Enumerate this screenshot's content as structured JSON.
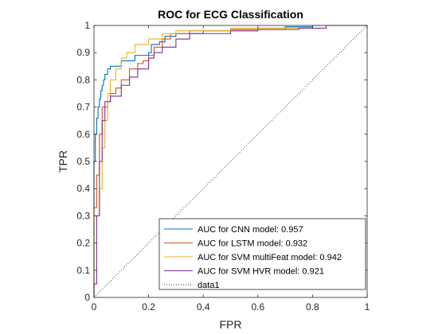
{
  "chart_data": {
    "type": "line",
    "title": "ROC for ECG Classification",
    "xlabel": "FPR",
    "ylabel": "TPR",
    "xlim": [
      0,
      1
    ],
    "ylim": [
      0,
      1
    ],
    "xticks": [
      "0",
      "0.2",
      "0.4",
      "0.6",
      "0.8",
      "1"
    ],
    "yticks": [
      "0",
      "0.1",
      "0.2",
      "0.3",
      "0.4",
      "0.5",
      "0.6",
      "0.7",
      "0.8",
      "0.9",
      "1"
    ],
    "grid": false,
    "legend_position": "bottom-right",
    "series": [
      {
        "name": "AUC for CNN model: 0.957",
        "color": "#0072bd",
        "style": "solid",
        "points": [
          [
            0,
            0
          ],
          [
            0,
            0.5
          ],
          [
            0.005,
            0.6
          ],
          [
            0.01,
            0.66
          ],
          [
            0.015,
            0.7
          ],
          [
            0.02,
            0.73
          ],
          [
            0.025,
            0.76
          ],
          [
            0.03,
            0.78
          ],
          [
            0.035,
            0.8
          ],
          [
            0.04,
            0.82
          ],
          [
            0.05,
            0.84
          ],
          [
            0.06,
            0.85
          ],
          [
            0.08,
            0.85
          ],
          [
            0.1,
            0.87
          ],
          [
            0.15,
            0.89
          ],
          [
            0.2,
            0.9
          ],
          [
            0.21,
            0.93
          ],
          [
            0.24,
            0.94
          ],
          [
            0.26,
            0.96
          ],
          [
            0.3,
            0.97
          ],
          [
            0.4,
            0.98
          ],
          [
            0.5,
            0.985
          ],
          [
            0.6,
            0.99
          ],
          [
            0.7,
            0.995
          ],
          [
            0.8,
            1
          ],
          [
            1,
            1
          ]
        ]
      },
      {
        "name": "AUC for LSTM model: 0.932",
        "color": "#d95319",
        "style": "solid",
        "points": [
          [
            0,
            0
          ],
          [
            0,
            0.33
          ],
          [
            0.01,
            0.45
          ],
          [
            0.02,
            0.6
          ],
          [
            0.03,
            0.7
          ],
          [
            0.05,
            0.72
          ],
          [
            0.06,
            0.75
          ],
          [
            0.08,
            0.77
          ],
          [
            0.1,
            0.8
          ],
          [
            0.13,
            0.84
          ],
          [
            0.16,
            0.86
          ],
          [
            0.18,
            0.87
          ],
          [
            0.2,
            0.89
          ],
          [
            0.22,
            0.92
          ],
          [
            0.25,
            0.95
          ],
          [
            0.28,
            0.97
          ],
          [
            0.35,
            0.98
          ],
          [
            0.5,
            0.985
          ],
          [
            0.7,
            0.99
          ],
          [
            0.8,
            1
          ],
          [
            1,
            1
          ]
        ]
      },
      {
        "name": "AUC for SVM multiFeat model: 0.942",
        "color": "#edb120",
        "style": "solid",
        "points": [
          [
            0,
            0
          ],
          [
            0,
            0.3
          ],
          [
            0.02,
            0.4
          ],
          [
            0.03,
            0.55
          ],
          [
            0.04,
            0.65
          ],
          [
            0.05,
            0.75
          ],
          [
            0.06,
            0.8
          ],
          [
            0.08,
            0.84
          ],
          [
            0.1,
            0.88
          ],
          [
            0.12,
            0.9
          ],
          [
            0.15,
            0.93
          ],
          [
            0.2,
            0.95
          ],
          [
            0.25,
            0.97
          ],
          [
            0.3,
            0.98
          ],
          [
            0.5,
            0.99
          ],
          [
            0.8,
            1
          ],
          [
            1,
            1
          ]
        ]
      },
      {
        "name": "AUC for SVM HVR model: 0.921",
        "color": "#7e2f8e",
        "style": "solid",
        "points": [
          [
            0,
            0
          ],
          [
            0,
            0.05
          ],
          [
            0.01,
            0.3
          ],
          [
            0.02,
            0.5
          ],
          [
            0.03,
            0.65
          ],
          [
            0.04,
            0.72
          ],
          [
            0.06,
            0.74
          ],
          [
            0.1,
            0.78
          ],
          [
            0.13,
            0.81
          ],
          [
            0.16,
            0.84
          ],
          [
            0.2,
            0.88
          ],
          [
            0.22,
            0.9
          ],
          [
            0.25,
            0.92
          ],
          [
            0.3,
            0.95
          ],
          [
            0.35,
            0.97
          ],
          [
            0.5,
            0.98
          ],
          [
            0.6,
            0.985
          ],
          [
            0.75,
            0.99
          ],
          [
            0.85,
            1
          ],
          [
            1,
            1
          ]
        ]
      },
      {
        "name": "data1",
        "color": "#333333",
        "style": "dotted",
        "points": [
          [
            0,
            0
          ],
          [
            1,
            1
          ]
        ]
      }
    ]
  }
}
